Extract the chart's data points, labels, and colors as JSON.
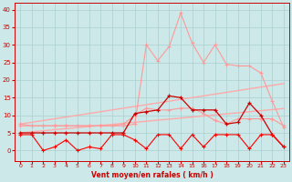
{
  "x": [
    0,
    1,
    2,
    3,
    4,
    5,
    6,
    7,
    8,
    9,
    10,
    11,
    12,
    13,
    14,
    15,
    16,
    17,
    18,
    19,
    20,
    21,
    22,
    23
  ],
  "trend_upper": [
    7.5,
    8.0,
    8.5,
    9.0,
    9.5,
    10.0,
    10.5,
    11.0,
    11.5,
    12.0,
    12.5,
    13.0,
    13.5,
    14.0,
    14.5,
    15.0,
    15.5,
    16.0,
    16.5,
    17.0,
    17.5,
    18.0,
    18.5,
    19.0
  ],
  "trend_lower": [
    5.0,
    5.3,
    5.6,
    5.9,
    6.2,
    6.5,
    6.8,
    7.1,
    7.4,
    7.7,
    8.0,
    8.3,
    8.6,
    8.9,
    9.2,
    9.5,
    9.8,
    10.1,
    10.4,
    10.7,
    11.0,
    11.3,
    11.6,
    11.9
  ],
  "peaks_light": [
    7.5,
    7.0,
    7.0,
    7.0,
    7.0,
    7.0,
    7.0,
    7.0,
    7.0,
    7.0,
    7.5,
    30.0,
    25.5,
    29.5,
    39.0,
    30.5,
    25.0,
    30.0,
    24.5,
    24.0,
    24.0,
    22.0,
    14.0,
    6.5
  ],
  "med_pink": [
    7.0,
    7.0,
    7.0,
    7.0,
    7.0,
    7.0,
    7.0,
    7.0,
    7.0,
    7.5,
    10.0,
    12.0,
    11.5,
    11.5,
    12.0,
    12.0,
    10.5,
    8.5,
    7.5,
    9.0,
    9.0,
    9.0,
    9.0,
    7.0
  ],
  "dark_jagged": [
    5.0,
    5.0,
    5.0,
    5.0,
    5.0,
    5.0,
    5.0,
    5.0,
    5.0,
    5.0,
    10.5,
    11.0,
    11.5,
    15.5,
    15.0,
    11.5,
    11.5,
    11.5,
    7.5,
    8.0,
    13.5,
    10.0,
    4.5,
    1.0
  ],
  "low_zigzag": [
    4.5,
    4.5,
    0.0,
    1.0,
    3.0,
    0.0,
    1.0,
    0.5,
    4.5,
    4.5,
    3.0,
    0.5,
    4.5,
    4.5,
    0.5,
    4.5,
    1.0,
    4.5,
    4.5,
    4.5,
    0.5,
    4.5,
    4.5,
    1.0
  ],
  "background_color": "#cce8e8",
  "grid_color": "#aacfcf",
  "color_trend_upper": "#ffaaaa",
  "color_trend_lower": "#ffaaaa",
  "color_peaks_light": "#ff9999",
  "color_med_pink": "#ff9999",
  "color_dark_jagged": "#cc0000",
  "color_low_zigzag": "#ff0000",
  "xlabel": "Vent moyen/en rafales ( km/h )",
  "ylim": [
    -3,
    42
  ],
  "xlim_min": -0.5,
  "xlim_max": 23.5
}
